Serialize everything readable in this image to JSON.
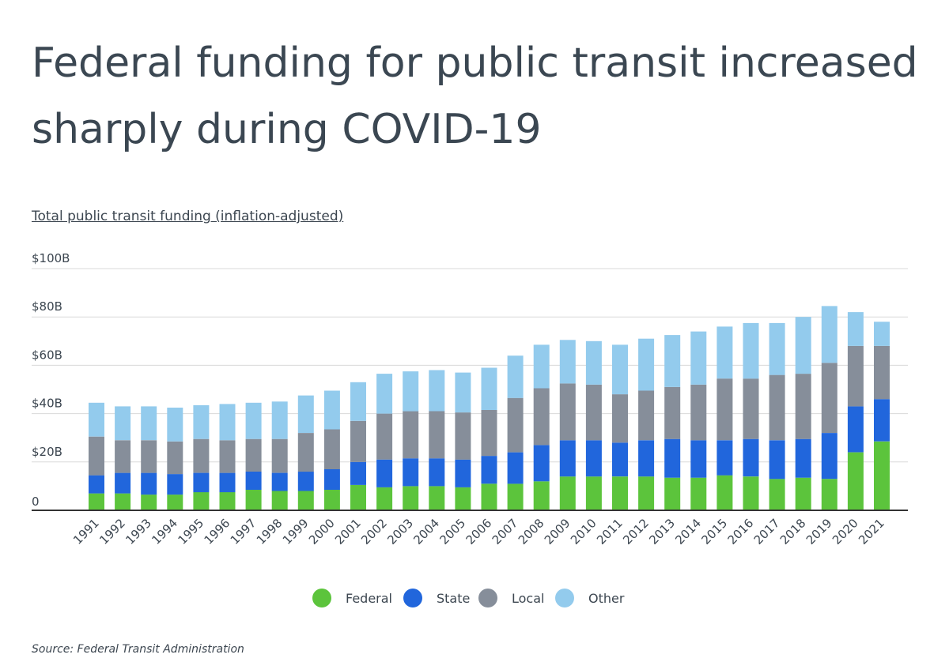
{
  "title": "Federal funding for public transit increased sharply during COVID-19",
  "subtitle": "Total public transit funding (inflation-adjusted)",
  "source": "Source: Federal Transit Administration",
  "colors": {
    "federal": "#5cc43c",
    "state": "#2166dc",
    "local": "#868e9a",
    "other": "#93cbed",
    "text": "#3c4650",
    "grid": "#d9d9d9",
    "axis": "#333333"
  },
  "chart_data": {
    "type": "bar",
    "stacked": true,
    "title": "Federal funding for public transit increased sharply during COVID-19",
    "subtitle": "Total public transit funding (inflation-adjusted)",
    "xlabel": "",
    "ylabel": "",
    "ylim": [
      0,
      100
    ],
    "yticks": [
      0,
      20,
      40,
      60,
      80,
      100
    ],
    "ytick_labels": [
      "0",
      "$20B",
      "$40B",
      "$60B",
      "$80B",
      "$100B"
    ],
    "grid": true,
    "legend_position": "bottom-center",
    "categories": [
      "1991",
      "1992",
      "1993",
      "1994",
      "1995",
      "1996",
      "1997",
      "1998",
      "1999",
      "2000",
      "2001",
      "2002",
      "2003",
      "2004",
      "2005",
      "2006",
      "2007",
      "2008",
      "2009",
      "2010",
      "2011",
      "2012",
      "2013",
      "2014",
      "2015",
      "2016",
      "2017",
      "2018",
      "2019",
      "2020",
      "2021"
    ],
    "series": [
      {
        "name": "Federal",
        "values": [
          7,
          7,
          6.5,
          6.5,
          7.5,
          7.5,
          8.5,
          8,
          8,
          8.5,
          10.5,
          9.5,
          10,
          10,
          9.5,
          11,
          11,
          12,
          14,
          14,
          14,
          14,
          13.5,
          13.5,
          14.5,
          14,
          13,
          13.5,
          13,
          24,
          28.5
        ]
      },
      {
        "name": "State",
        "values": [
          7.5,
          8.5,
          9,
          8.5,
          8,
          8,
          7.5,
          7.5,
          8,
          8.5,
          9.5,
          11.5,
          11.5,
          11.5,
          11.5,
          11.5,
          13,
          15,
          15,
          15,
          14,
          15,
          16,
          15.5,
          14.5,
          15.5,
          16,
          16,
          19,
          19,
          17.5
        ]
      },
      {
        "name": "Local",
        "values": [
          16,
          13.5,
          13.5,
          13.5,
          14,
          13.5,
          13.5,
          14,
          16,
          16.5,
          17,
          19,
          19.5,
          19.5,
          19.5,
          19,
          22.5,
          23.5,
          23.5,
          23,
          20,
          20.5,
          21.5,
          23,
          25.5,
          25,
          27,
          27,
          29,
          25,
          22
        ]
      },
      {
        "name": "Other",
        "values": [
          14,
          14,
          14,
          14,
          14,
          15,
          15,
          15.5,
          15.5,
          16,
          16,
          16.5,
          16.5,
          17,
          16.5,
          17.5,
          17.5,
          18,
          18,
          18,
          20.5,
          21.5,
          21.5,
          22,
          21.5,
          23,
          21.5,
          23.5,
          23.5,
          14,
          10
        ]
      }
    ]
  }
}
